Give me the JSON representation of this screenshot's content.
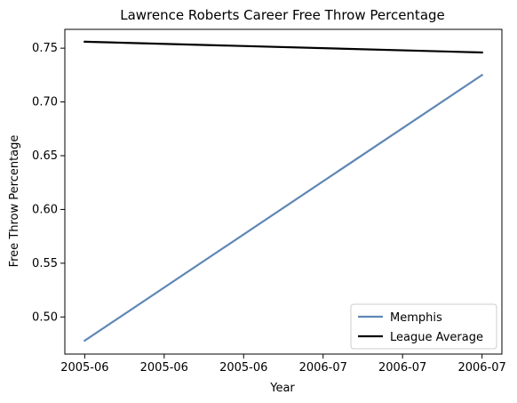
{
  "chart_data": {
    "type": "line",
    "title": "Lawrence Roberts  Career Free Throw Percentage",
    "xlabel": "Year",
    "ylabel": "Free Throw Percentage",
    "x_tick_labels": [
      "2005-06",
      "2005-06",
      "2005-06",
      "2006-07",
      "2006-07",
      "2006-07"
    ],
    "x": [
      0,
      1
    ],
    "xlim": [
      -0.05,
      1.05
    ],
    "ylim": [
      0.4655,
      0.7675
    ],
    "y_ticks": [
      0.5,
      0.55,
      0.6,
      0.65,
      0.7,
      0.75
    ],
    "y_tick_labels": [
      "0.50",
      "0.55",
      "0.60",
      "0.65",
      "0.70",
      "0.75"
    ],
    "grid": false,
    "legend_position": "lower-right",
    "series": [
      {
        "name": "Memphis",
        "values": [
          0.478,
          0.725
        ],
        "color": "#5f87b5"
      },
      {
        "name": "League Average",
        "values": [
          0.756,
          0.746
        ],
        "color": "#000000"
      }
    ]
  }
}
